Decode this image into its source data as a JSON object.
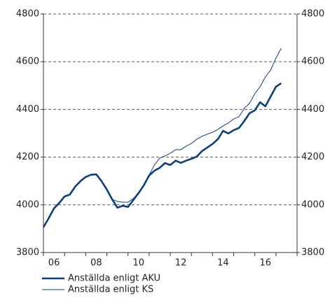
{
  "chart_data": {
    "type": "line",
    "x": [
      2006.0,
      2006.25,
      2006.5,
      2006.75,
      2007.0,
      2007.25,
      2007.5,
      2007.75,
      2008.0,
      2008.25,
      2008.5,
      2008.75,
      2009.0,
      2009.25,
      2009.5,
      2009.75,
      2010.0,
      2010.25,
      2010.5,
      2010.75,
      2011.0,
      2011.25,
      2011.5,
      2011.75,
      2012.0,
      2012.25,
      2012.5,
      2012.75,
      2013.0,
      2013.25,
      2013.5,
      2013.75,
      2014.0,
      2014.25,
      2014.5,
      2014.75,
      2015.0,
      2015.25,
      2015.5,
      2015.75,
      2016.0,
      2016.25,
      2016.5,
      2016.75,
      2017.0,
      2017.25
    ],
    "series": [
      {
        "name": "Anställda enligt AKU",
        "color": "#0d3f80",
        "width": 2.6,
        "values": [
          3906,
          3944,
          3985,
          4008,
          4035,
          4043,
          4076,
          4099,
          4117,
          4126,
          4128,
          4099,
          4064,
          4023,
          3988,
          3996,
          3991,
          4020,
          4049,
          4082,
          4123,
          4143,
          4155,
          4175,
          4167,
          4185,
          4176,
          4185,
          4193,
          4202,
          4225,
          4240,
          4255,
          4275,
          4310,
          4299,
          4313,
          4322,
          4351,
          4384,
          4396,
          4430,
          4413,
          4454,
          4495,
          4510
        ]
      },
      {
        "name": "Anställda enligt KS",
        "color": "#0d3f80",
        "width": 1,
        "values": [
          3906,
          3944,
          3985,
          4008,
          4035,
          4043,
          4076,
          4099,
          4117,
          4126,
          4128,
          4099,
          4064,
          4023,
          4014,
          4011,
          4011,
          4026,
          4052,
          4084,
          4125,
          4167,
          4196,
          4205,
          4216,
          4231,
          4231,
          4246,
          4257,
          4275,
          4287,
          4296,
          4304,
          4316,
          4331,
          4343,
          4360,
          4369,
          4404,
          4425,
          4466,
          4495,
          4536,
          4565,
          4615,
          4656
        ]
      }
    ],
    "xlim": [
      2006,
      2018
    ],
    "xticks": [
      {
        "value": 2006.5,
        "label": "06"
      },
      {
        "value": 2008.5,
        "label": "08"
      },
      {
        "value": 2010.5,
        "label": "10"
      },
      {
        "value": 2012.5,
        "label": "12"
      },
      {
        "value": 2014.5,
        "label": "14"
      },
      {
        "value": 2016.5,
        "label": "16"
      }
    ],
    "xminorticks": [
      2006,
      2007,
      2008,
      2009,
      2010,
      2011,
      2012,
      2013,
      2014,
      2015,
      2016,
      2017,
      2018
    ],
    "ylim": [
      3800,
      4800
    ],
    "yticks": [
      3800,
      4000,
      4200,
      4400,
      4600,
      4800
    ],
    "y2lim": [
      3800,
      4800
    ],
    "y2ticks": [
      3800,
      4000,
      4200,
      4400,
      4600,
      4800
    ],
    "grid": true,
    "legend": "bottom"
  }
}
